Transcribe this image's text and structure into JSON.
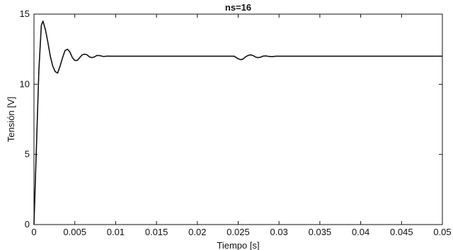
{
  "chart_data": {
    "type": "line",
    "title": "ns=16",
    "xlabel": "Tiempo [s]",
    "ylabel": "Tensión [V]",
    "xlim": [
      0,
      0.05
    ],
    "ylim": [
      0,
      15
    ],
    "xticks": [
      0,
      0.005,
      0.01,
      0.015,
      0.02,
      0.025,
      0.03,
      0.035,
      0.04,
      0.045,
      0.05
    ],
    "xtick_labels": [
      "0",
      "0.005",
      "0.01",
      "0.015",
      "0.02",
      "0.025",
      "0.03",
      "0.035",
      "0.04",
      "0.045",
      "0.05"
    ],
    "yticks": [
      0,
      5,
      10,
      15
    ],
    "ytick_labels": [
      "0",
      "5",
      "10",
      "15"
    ],
    "grid": false,
    "series": [
      {
        "color": "#111111",
        "x": [
          0,
          0.0003,
          0.0006,
          0.0009,
          0.0011,
          0.0014,
          0.0017,
          0.002,
          0.0023,
          0.0026,
          0.0029,
          0.0032,
          0.0035,
          0.0038,
          0.0041,
          0.0044,
          0.0047,
          0.005,
          0.0053,
          0.0056,
          0.0059,
          0.0062,
          0.0065,
          0.0068,
          0.0071,
          0.0074,
          0.0077,
          0.008,
          0.0085,
          0.009,
          0.0095,
          0.01,
          0.011,
          0.012,
          0.015,
          0.02,
          0.0245,
          0.0249,
          0.0253,
          0.0256,
          0.0259,
          0.0262,
          0.0265,
          0.0268,
          0.0271,
          0.0274,
          0.0277,
          0.028,
          0.0284,
          0.0288,
          0.0292,
          0.0296,
          0.03,
          0.031,
          0.035,
          0.04,
          0.045,
          0.05
        ],
        "y": [
          0,
          5.5,
          11.0,
          14.2,
          14.5,
          13.9,
          13.0,
          12.0,
          11.3,
          10.9,
          10.8,
          11.3,
          11.9,
          12.4,
          12.5,
          12.3,
          11.9,
          11.7,
          11.7,
          11.9,
          12.1,
          12.15,
          12.1,
          11.95,
          11.9,
          11.95,
          12.05,
          12.05,
          11.98,
          12.01,
          12.0,
          12.0,
          12.0,
          12.0,
          12.0,
          12.0,
          12.0,
          11.85,
          11.75,
          11.8,
          11.95,
          12.05,
          12.1,
          12.05,
          11.95,
          11.9,
          11.92,
          12.0,
          12.02,
          11.98,
          11.97,
          12.0,
          12.0,
          12.0,
          12.0,
          12.0,
          12.0,
          12.0
        ]
      }
    ]
  }
}
